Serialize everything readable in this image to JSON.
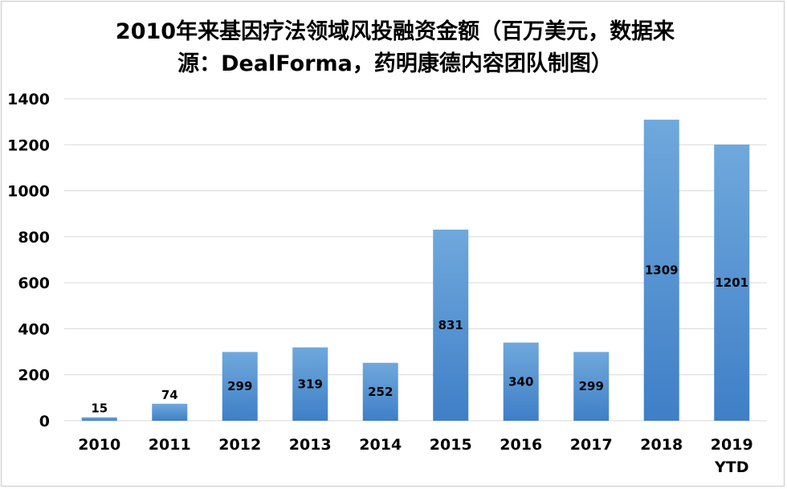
{
  "chart_data": {
    "type": "bar",
    "title_lines": [
      "2010年来基因疗法领域风投融资金额（百万美元，数据来",
      "源：DealForma，药明康德内容团队制图）"
    ],
    "categories": [
      "2010",
      "2011",
      "2012",
      "2013",
      "2014",
      "2015",
      "2016",
      "2017",
      "2018",
      "2019\nYTD"
    ],
    "values": [
      15,
      74,
      299,
      319,
      252,
      831,
      340,
      299,
      1309,
      1201
    ],
    "data_labels": [
      "15",
      "74",
      "299",
      "319",
      "252",
      "831",
      "340",
      "299",
      "1309",
      "1201"
    ],
    "xlabel": "",
    "ylabel": "",
    "ylim": [
      0,
      1400
    ],
    "yticks": [
      0,
      200,
      400,
      600,
      800,
      1000,
      1200,
      1400
    ],
    "grid": "horizontal",
    "legend": "none",
    "bar_color_top": "#6fa8dc",
    "bar_color_bottom": "#3f7fc7",
    "grid_color": "#d9d9d9"
  }
}
